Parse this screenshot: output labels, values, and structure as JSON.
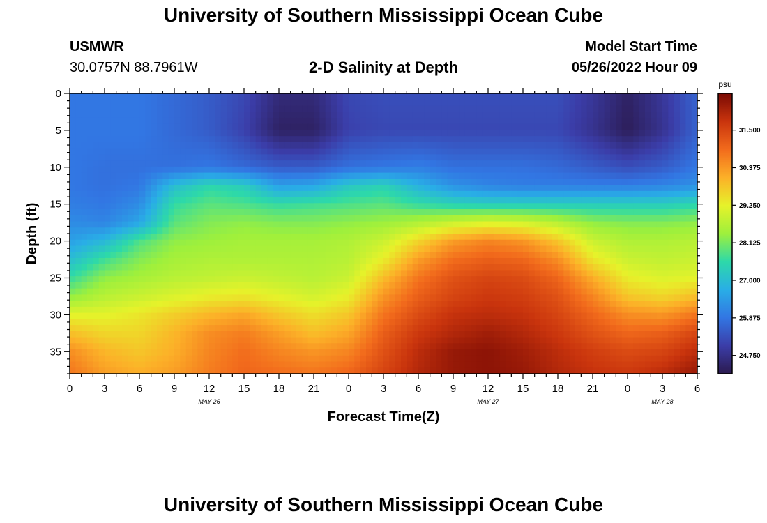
{
  "page": {
    "title": "University of Southern Mississippi Ocean Cube",
    "station": "USMWR",
    "coords": "30.0757N  88.7961W",
    "plot_title": "2-D Salinity at Depth",
    "model_label": "Model Start Time",
    "model_time": "05/26/2022 Hour 09",
    "footer_title": "University of Southern Mississippi Ocean Cube"
  },
  "chart_data": {
    "type": "heatmap",
    "title": "2-D Salinity at Depth",
    "xlabel": "Forecast Time(Z)",
    "ylabel": "Depth (ft)",
    "x_hours_range": [
      0,
      54
    ],
    "x_tick_hours": [
      0,
      3,
      6,
      9,
      12,
      15,
      18,
      21,
      24,
      27,
      30,
      33,
      36,
      39,
      42,
      45,
      48,
      51,
      54
    ],
    "x_tick_labels": [
      "0",
      "3",
      "6",
      "9",
      "12",
      "15",
      "18",
      "21",
      "0",
      "3",
      "6",
      "9",
      "12",
      "15",
      "18",
      "21",
      "0",
      "3",
      "6"
    ],
    "date_labels": [
      {
        "text": "MAY 26",
        "hour": 12
      },
      {
        "text": "MAY 27",
        "hour": 36
      },
      {
        "text": "MAY 28",
        "hour": 51
      }
    ],
    "y_range": [
      0,
      38
    ],
    "y_ticks": [
      0,
      5,
      10,
      15,
      20,
      25,
      30,
      35
    ],
    "colorbar": {
      "unit": "psu",
      "min": 24.2,
      "max": 32.6,
      "ticks": [
        31.5,
        30.375,
        29.25,
        28.125,
        27.0,
        25.875,
        24.75
      ],
      "tick_labels": [
        "31.500",
        "30.375",
        "29.250",
        "28.125",
        "27.000",
        "25.875",
        "24.750"
      ],
      "colors": [
        "#2b1a4f",
        "#3b3da8",
        "#3276e3",
        "#29aee6",
        "#2dd9a9",
        "#9ef03c",
        "#e6f22a",
        "#fcb028",
        "#f26b1c",
        "#c9340d",
        "#7a0a04"
      ]
    },
    "depths": [
      0,
      5,
      10,
      12.5,
      15,
      17.5,
      20,
      22.5,
      25,
      27.5,
      30,
      32.5,
      35,
      38
    ],
    "hours": [
      0,
      3,
      6,
      9,
      12,
      15,
      18,
      21,
      24,
      27,
      30,
      33,
      36,
      39,
      42,
      45,
      48,
      51,
      54
    ],
    "salinity": [
      [
        25.9,
        25.9,
        25.9,
        25.7,
        25.5,
        25.2,
        24.6,
        24.6,
        25.2,
        25.3,
        25.3,
        25.3,
        25.3,
        25.3,
        25.3,
        24.9,
        24.4,
        24.9,
        25.6
      ],
      [
        25.9,
        25.9,
        25.9,
        25.7,
        25.5,
        25.1,
        24.4,
        24.4,
        25.1,
        25.2,
        25.2,
        25.2,
        25.2,
        25.2,
        25.2,
        24.8,
        24.3,
        24.8,
        25.6
      ],
      [
        25.9,
        25.8,
        25.8,
        25.8,
        25.9,
        25.7,
        25.5,
        25.5,
        25.8,
        25.9,
        26.0,
        25.8,
        25.8,
        25.8,
        25.7,
        25.5,
        25.3,
        25.5,
        25.9
      ],
      [
        25.9,
        25.8,
        25.9,
        27.0,
        27.5,
        27.3,
        26.5,
        26.6,
        27.2,
        27.4,
        26.8,
        26.3,
        26.1,
        26.0,
        26.0,
        26.0,
        26.0,
        26.1,
        26.3
      ],
      [
        26.0,
        25.9,
        26.2,
        27.6,
        27.9,
        27.8,
        27.6,
        27.7,
        27.8,
        27.9,
        27.6,
        27.4,
        27.3,
        27.3,
        27.3,
        27.3,
        27.3,
        27.3,
        27.5
      ],
      [
        26.2,
        26.1,
        26.6,
        27.9,
        28.2,
        28.3,
        28.2,
        28.2,
        28.3,
        28.4,
        28.6,
        28.9,
        29.1,
        29.0,
        28.7,
        28.3,
        28.2,
        28.2,
        28.3
      ],
      [
        26.5,
        26.9,
        27.8,
        28.3,
        28.4,
        28.5,
        28.5,
        28.5,
        28.6,
        28.9,
        29.6,
        30.3,
        30.6,
        30.4,
        29.8,
        28.9,
        28.6,
        28.6,
        28.7
      ],
      [
        27.0,
        27.7,
        28.2,
        28.5,
        28.6,
        28.6,
        28.6,
        28.6,
        28.7,
        29.3,
        30.3,
        30.9,
        31.1,
        31.0,
        30.5,
        29.4,
        28.9,
        28.8,
        28.9
      ],
      [
        27.6,
        28.3,
        28.5,
        28.7,
        28.8,
        28.9,
        28.8,
        28.7,
        28.9,
        29.9,
        30.8,
        31.3,
        31.5,
        31.4,
        31.0,
        30.1,
        29.3,
        29.1,
        29.2
      ],
      [
        28.3,
        28.7,
        28.9,
        29.1,
        29.3,
        29.4,
        29.2,
        29.0,
        29.3,
        30.4,
        31.1,
        31.5,
        31.7,
        31.6,
        31.3,
        30.6,
        29.8,
        29.6,
        29.9
      ],
      [
        29.2,
        29.2,
        29.4,
        29.7,
        30.0,
        30.2,
        29.8,
        29.5,
        29.8,
        30.8,
        31.4,
        31.8,
        31.9,
        31.8,
        31.5,
        31.0,
        30.5,
        30.4,
        30.8
      ],
      [
        29.9,
        29.6,
        29.6,
        30.0,
        30.5,
        30.7,
        30.3,
        29.9,
        30.2,
        31.1,
        31.7,
        32.0,
        32.2,
        32.0,
        31.7,
        31.3,
        31.0,
        31.1,
        31.5
      ],
      [
        30.5,
        30.0,
        29.8,
        30.1,
        30.6,
        30.9,
        30.6,
        30.4,
        30.6,
        31.3,
        31.9,
        32.3,
        32.4,
        32.2,
        31.9,
        31.6,
        31.4,
        31.5,
        31.9
      ],
      [
        30.8,
        30.3,
        30.1,
        30.3,
        30.7,
        31.0,
        30.9,
        30.8,
        31.0,
        31.5,
        32.0,
        32.3,
        32.4,
        32.3,
        32.0,
        31.8,
        31.7,
        31.9,
        32.3
      ]
    ]
  }
}
